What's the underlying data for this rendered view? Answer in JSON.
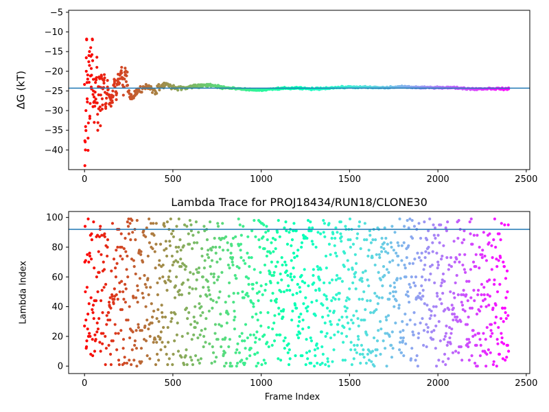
{
  "chart_data": [
    {
      "type": "scatter",
      "title": "",
      "xlabel": "",
      "ylabel": "ΔG (kT)",
      "xlim": [
        -90,
        2520
      ],
      "ylim": [
        -45,
        -4.5
      ],
      "xticks": [
        0,
        500,
        1000,
        1500,
        2000,
        2500
      ],
      "yticks": [
        -40,
        -35,
        -30,
        -25,
        -20,
        -15,
        -10,
        -5
      ],
      "grid": false,
      "colormap": "rainbow (reversed: early frames red, late frames violet)",
      "reference_line": {
        "y": -24.3,
        "color": "#1f77b4"
      },
      "series_description": "Running free-energy estimate per frame; large scatter early (frames 0-300) converging to about -24 kT by frame 800",
      "x_range": [
        0,
        2400
      ],
      "points": [
        [
          2,
          -44
        ],
        [
          5,
          -40
        ],
        [
          8,
          -30
        ],
        [
          10,
          -20
        ],
        [
          12,
          -12
        ],
        [
          15,
          -27
        ],
        [
          18,
          -22
        ],
        [
          20,
          -37
        ],
        [
          25,
          -16
        ],
        [
          28,
          -15
        ],
        [
          30,
          -32
        ],
        [
          35,
          -14
        ],
        [
          38,
          -24
        ],
        [
          40,
          -21
        ],
        [
          45,
          -12
        ],
        [
          48,
          -29
        ],
        [
          50,
          -25
        ],
        [
          55,
          -33
        ],
        [
          60,
          -22
        ],
        [
          65,
          -28
        ],
        [
          70,
          -19
        ],
        [
          75,
          -35
        ],
        [
          80,
          -26
        ],
        [
          85,
          -24
        ],
        [
          90,
          -30
        ],
        [
          95,
          -21
        ],
        [
          100,
          -27
        ],
        [
          110,
          -23
        ],
        [
          120,
          -29
        ],
        [
          130,
          -24
        ],
        [
          140,
          -26
        ],
        [
          150,
          -28
        ],
        [
          160,
          -25
        ],
        [
          170,
          -23
        ],
        [
          180,
          -26
        ],
        [
          190,
          -22
        ],
        [
          200,
          -21
        ],
        [
          210,
          -19
        ],
        [
          220,
          -24
        ],
        [
          230,
          -21
        ],
        [
          260,
          -27
        ],
        [
          300,
          -25
        ],
        [
          350,
          -24
        ],
        [
          400,
          -25
        ],
        [
          450,
          -23
        ],
        [
          500,
          -24
        ],
        [
          550,
          -24.3
        ],
        [
          600,
          -24
        ],
        [
          700,
          -23.5
        ],
        [
          800,
          -24.2
        ],
        [
          900,
          -24.6
        ],
        [
          1000,
          -24.8
        ],
        [
          1100,
          -24.4
        ],
        [
          1200,
          -24.3
        ],
        [
          1300,
          -24.5
        ],
        [
          1400,
          -24.2
        ],
        [
          1500,
          -24.0
        ],
        [
          1600,
          -24.1
        ],
        [
          1700,
          -24.2
        ],
        [
          1800,
          -23.9
        ],
        [
          1900,
          -24.2
        ],
        [
          2000,
          -24.1
        ],
        [
          2100,
          -24.2
        ],
        [
          2200,
          -24.5
        ],
        [
          2300,
          -24.4
        ],
        [
          2400,
          -24.5
        ]
      ]
    },
    {
      "type": "scatter",
      "title": "Lambda Trace for PROJ18434/RUN18/CLONE30",
      "xlabel": "Frame Index",
      "ylabel": "Lambda Index",
      "xlim": [
        -90,
        2520
      ],
      "ylim": [
        -5,
        104
      ],
      "xticks": [
        0,
        500,
        1000,
        1500,
        2000,
        2500
      ],
      "yticks": [
        0,
        20,
        40,
        60,
        80,
        100
      ],
      "grid": false,
      "colormap": "rainbow (reversed: early frames red, late frames violet)",
      "reference_line": {
        "y": 92,
        "color": "#1f77b4"
      },
      "series_description": "Lambda index (0-99) visited at each frame 0-2400, uniformly scattered across the full range",
      "x_range": [
        0,
        2400
      ],
      "y_range": [
        0,
        99
      ]
    }
  ]
}
